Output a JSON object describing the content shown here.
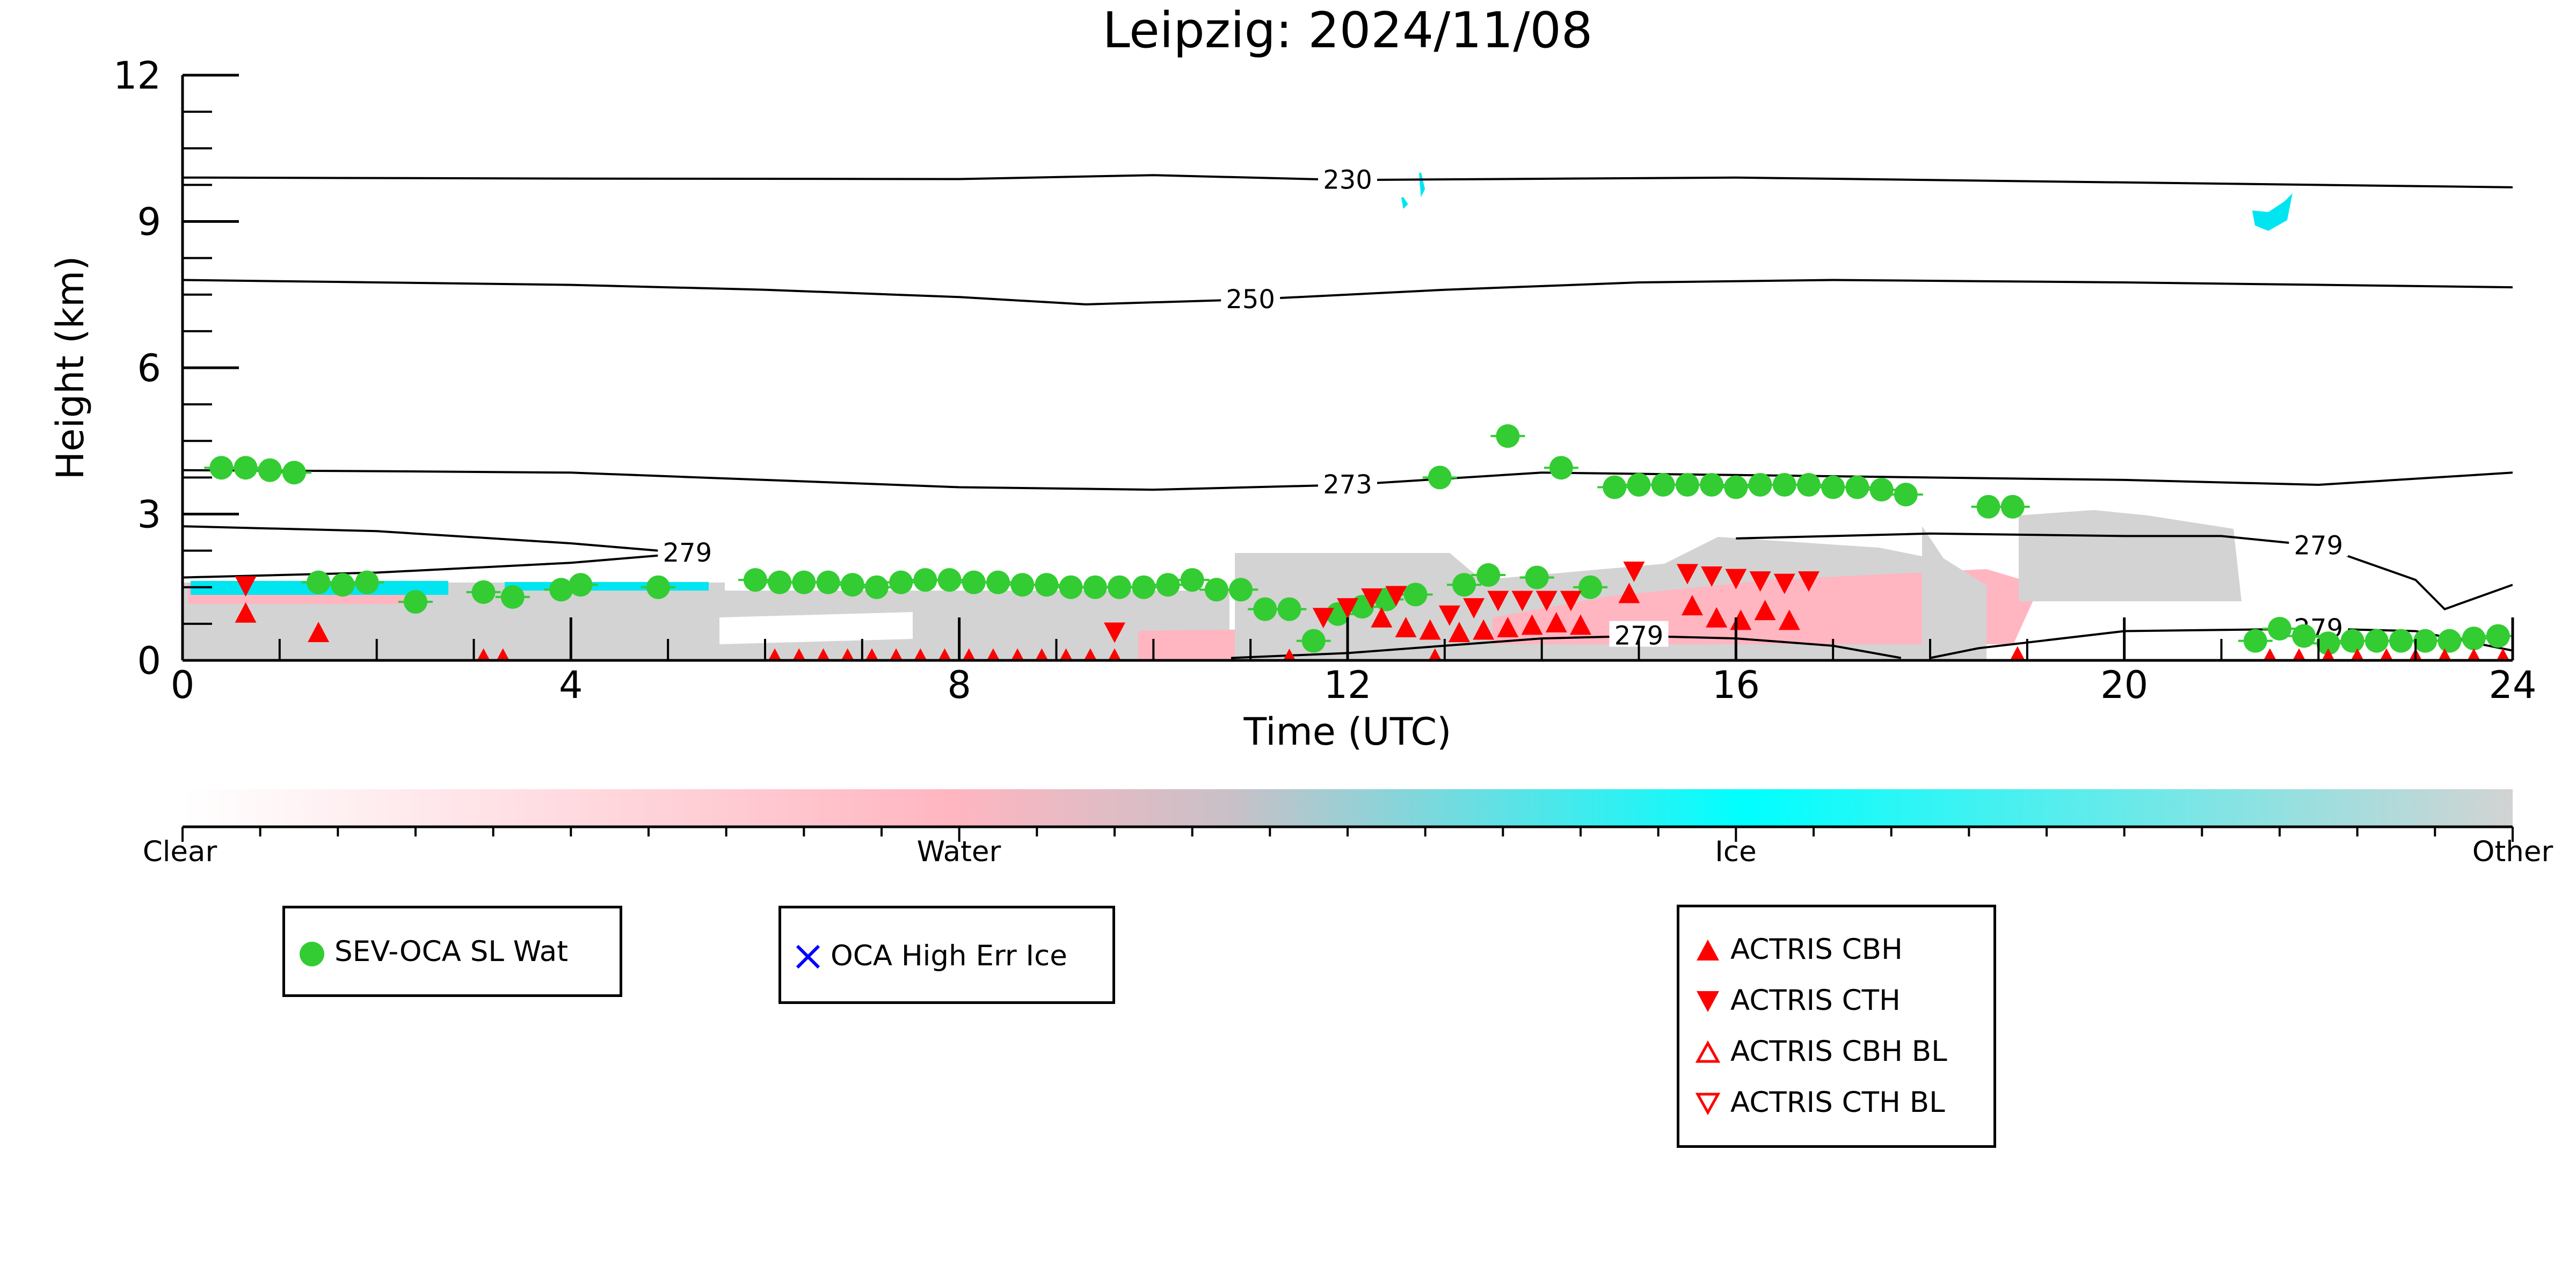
{
  "chart_data": {
    "type": "scatter",
    "title": "Leipzig: 2024/11/08",
    "xlabel": "Time (UTC)",
    "ylabel": "Height (km)",
    "xlim": [
      0,
      24
    ],
    "ylim": [
      0,
      12
    ],
    "xticks": [
      "0",
      "4",
      "8",
      "12",
      "16",
      "20",
      "24"
    ],
    "yticks": [
      "0",
      "3",
      "6",
      "9",
      "12"
    ],
    "grid": false,
    "colorbar": {
      "labels": [
        "Clear",
        "Water",
        "Ice",
        "Other"
      ],
      "colors": [
        "#ffffff",
        "#ffb6c1",
        "#00ffff",
        "#d3d3d3"
      ]
    },
    "contours": [
      {
        "label": "230",
        "x": [
          0,
          4,
          8,
          10,
          12,
          16,
          20,
          24
        ],
        "y": [
          9.9,
          9.88,
          9.87,
          9.95,
          9.85,
          9.9,
          9.8,
          9.7
        ]
      },
      {
        "label": "250",
        "x": [
          0,
          2,
          4,
          6,
          8,
          9.3,
          11,
          13,
          15,
          17,
          20,
          24
        ],
        "y": [
          7.8,
          7.75,
          7.7,
          7.6,
          7.45,
          7.3,
          7.4,
          7.6,
          7.75,
          7.8,
          7.75,
          7.65
        ]
      },
      {
        "label": "273",
        "x": [
          0,
          2,
          4,
          6,
          8,
          10,
          12,
          14,
          16,
          18,
          20,
          22,
          24
        ],
        "y": [
          3.9,
          3.88,
          3.85,
          3.7,
          3.55,
          3.5,
          3.6,
          3.85,
          3.8,
          3.75,
          3.7,
          3.6,
          3.85
        ]
      },
      {
        "label": "279",
        "x": [
          0,
          2,
          4,
          5.2,
          4,
          2,
          0
        ],
        "y": [
          2.75,
          2.65,
          2.4,
          2.2,
          2.0,
          1.8,
          1.7
        ]
      },
      {
        "label": "279",
        "x": [
          16,
          18,
          20,
          21,
          22,
          23,
          23.3,
          24
        ],
        "y": [
          2.5,
          2.6,
          2.55,
          2.55,
          2.35,
          1.65,
          1.05,
          1.55
        ]
      },
      {
        "label": "279",
        "x": [
          10.8,
          12,
          14,
          15,
          16,
          17,
          17.7
        ],
        "y": [
          0.05,
          0.15,
          0.45,
          0.5,
          0.45,
          0.3,
          0.05
        ]
      },
      {
        "label": "279",
        "x": [
          18,
          18.5,
          20,
          22,
          23,
          24
        ],
        "y": [
          0.05,
          0.25,
          0.6,
          0.65,
          0.6,
          0.2
        ]
      }
    ],
    "series": [
      {
        "name": "SEV-OCA SL Wat",
        "color": "#33cc33",
        "marker": "circle",
        "x": [
          0.4,
          0.65,
          0.9,
          1.15,
          1.4,
          1.65,
          1.9,
          2.4,
          3.1,
          3.4,
          3.9,
          4.1,
          4.9,
          5.9,
          6.15,
          6.4,
          6.65,
          6.9,
          7.15,
          7.4,
          7.65,
          7.9,
          8.15,
          8.4,
          8.65,
          8.9,
          9.15,
          9.4,
          9.65,
          9.9,
          10.15,
          10.4,
          10.65,
          10.9,
          11.15,
          11.4,
          11.65,
          11.9,
          12.15,
          12.4,
          12.7,
          12.95,
          13.2,
          13.45,
          13.65,
          13.95,
          14.2,
          14.5,
          14.75,
          15.0,
          15.25,
          15.5,
          15.75,
          16.0,
          16.25,
          16.5,
          16.75,
          17.0,
          17.25,
          17.5,
          17.75,
          18.6,
          18.85,
          21.35,
          21.6,
          21.85,
          22.1,
          22.35,
          22.6,
          22.85,
          23.1,
          23.35,
          23.6,
          23.85
        ],
        "y": [
          3.95,
          3.95,
          3.9,
          3.85,
          1.6,
          1.55,
          1.6,
          1.2,
          1.4,
          1.3,
          1.45,
          1.55,
          1.5,
          1.65,
          1.6,
          1.6,
          1.6,
          1.55,
          1.5,
          1.6,
          1.65,
          1.65,
          1.6,
          1.6,
          1.55,
          1.55,
          1.5,
          1.5,
          1.5,
          1.5,
          1.55,
          1.65,
          1.45,
          1.45,
          1.05,
          1.05,
          0.4,
          0.95,
          1.1,
          1.25,
          1.35,
          3.75,
          1.55,
          1.75,
          4.6,
          1.7,
          3.95,
          1.5,
          3.55,
          3.6,
          3.6,
          3.6,
          3.6,
          3.55,
          3.6,
          3.6,
          3.6,
          3.55,
          3.55,
          3.5,
          3.4,
          3.15,
          3.15,
          0.4,
          0.65,
          0.5,
          0.35,
          0.4,
          0.4,
          0.4,
          0.4,
          0.4,
          0.45,
          0.5
        ]
      },
      {
        "name": "OCA High Err Ice",
        "color": "#0000ff",
        "marker": "x",
        "x": [],
        "y": []
      },
      {
        "name": "ACTRIS CBH",
        "color": "#ff0000",
        "marker": "triangle-up-filled",
        "x": [
          0.65,
          1.4,
          11.4,
          12.35,
          12.6,
          12.85,
          13.15,
          13.4,
          13.65,
          13.9,
          14.15,
          14.4,
          14.9,
          15.55,
          15.8,
          16.05,
          16.3,
          16.55,
          18.9
        ],
        "y": [
          0.95,
          0.55,
          0.0,
          0.85,
          0.65,
          0.6,
          0.55,
          0.6,
          0.65,
          0.7,
          0.75,
          0.7,
          1.35,
          1.1,
          0.85,
          0.8,
          1.0,
          0.8,
          0.05
        ]
      },
      {
        "name": "ACTRIS CTH",
        "color": "#ff0000",
        "marker": "triangle-down-filled",
        "x": [
          0.65,
          9.6,
          11.75,
          12.0,
          12.25,
          12.5,
          13.05,
          13.3,
          13.55,
          13.8,
          14.05,
          14.3,
          14.95,
          15.5,
          15.75,
          16.0,
          16.25,
          16.5,
          16.75
        ],
        "y": [
          1.55,
          0.6,
          0.9,
          1.1,
          1.3,
          1.35,
          0.95,
          1.1,
          1.25,
          1.25,
          1.25,
          1.25,
          1.85,
          1.8,
          1.75,
          1.7,
          1.65,
          1.6,
          1.65
        ]
      },
      {
        "name": "ACTRIS CBH BL",
        "color": "#ff0000",
        "marker": "triangle-up-open",
        "x": [
          3.1,
          3.3,
          6.1,
          6.35,
          6.6,
          6.85,
          7.1,
          7.35,
          7.6,
          7.85,
          8.1,
          8.35,
          8.6,
          8.85,
          9.1,
          9.35,
          9.6,
          12.9,
          21.5,
          21.8,
          22.1,
          22.4,
          22.7,
          23.0,
          23.3,
          23.6,
          23.9
        ],
        "y": [
          0.05,
          0.05,
          0.05,
          0.05,
          0.05,
          0.05,
          0.05,
          0.05,
          0.05,
          0.05,
          0.05,
          0.05,
          0.05,
          0.05,
          0.05,
          0.05,
          0.05,
          0.05,
          0.05,
          0.05,
          0.05,
          0.05,
          0.05,
          0.05,
          0.05,
          0.05,
          0.05
        ]
      },
      {
        "name": "ACTRIS CTH BL",
        "color": "#ff0000",
        "marker": "triangle-down-open",
        "x": [],
        "y": []
      }
    ]
  },
  "legends": {
    "left": [
      "SEV-OCA SL Wat"
    ],
    "middle": [
      "OCA High Err Ice"
    ],
    "right": [
      "ACTRIS CBH",
      "ACTRIS CTH",
      "ACTRIS CBH BL",
      "ACTRIS CTH BL"
    ]
  }
}
